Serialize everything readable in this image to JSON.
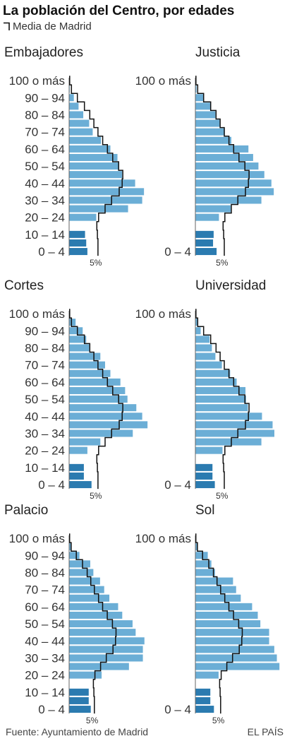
{
  "title": "La población del Centro, por edades",
  "legend_label": "Media de Madrid",
  "source": "Fuente: Ayuntamiento de Madrid",
  "brand": "EL PAÍS",
  "colors": {
    "bar_light": "#6baed6",
    "bar_dark": "#2b7bb0",
    "madrid_line": "#111111"
  },
  "chart_data": [
    {
      "type": "bar",
      "title": "Embajadores",
      "categories": [
        "0 – 4",
        "5 – 9",
        "10 – 14",
        "15 – 19",
        "20 – 24",
        "25 – 29",
        "30 – 34",
        "35 – 39",
        "40 – 44",
        "45 – 49",
        "50 – 54",
        "55 – 59",
        "60 – 64",
        "65 – 69",
        "70 – 74",
        "75 – 79",
        "80 – 84",
        "85 – 89",
        "90 – 94",
        "95 – 99",
        "100 o más"
      ],
      "tick_labels": [
        "100 o más",
        "90 – 94",
        "80 – 84",
        "70 – 74",
        "60 – 64",
        "50 – 54",
        "40 – 44",
        "30 – 34",
        "20 – 24",
        "10 – 14",
        "0 – 4"
      ],
      "series": [
        {
          "name": "",
          "values": [
            3.1,
            2.9,
            2.7,
            0,
            4.6,
            10.0,
            12.4,
            12.7,
            11.2,
            9.0,
            8.5,
            8.2,
            7.0,
            5.4,
            4.0,
            3.4,
            2.4,
            1.6,
            0.8,
            0.1,
            0
          ]
        },
        {
          "name": "Media de Madrid",
          "values": [
            4.9,
            4.9,
            4.8,
            4.7,
            5.0,
            6.1,
            7.2,
            8.5,
            9.0,
            9.1,
            8.4,
            7.4,
            6.5,
            5.7,
            4.9,
            4.2,
            3.5,
            2.6,
            1.4,
            0.4,
            0.1
          ]
        }
      ],
      "xlabel": "5%",
      "xlim": [
        0,
        14
      ]
    },
    {
      "type": "bar",
      "title": "Justicia",
      "categories": [
        "0 – 4",
        "5 – 9",
        "10 – 14",
        "15 – 19",
        "20 – 24",
        "25 – 29",
        "30 – 34",
        "35 – 39",
        "40 – 44",
        "45 – 49",
        "50 – 54",
        "55 – 59",
        "60 – 64",
        "65 – 69",
        "70 – 74",
        "75 – 79",
        "80 – 84",
        "85 – 89",
        "90 – 94",
        "95 – 99",
        "100 o más"
      ],
      "tick_labels": [
        "100 o más",
        "0 – 4"
      ],
      "series": [
        {
          "name": "",
          "values": [
            3.6,
            3.0,
            3.1,
            0,
            4.0,
            6.0,
            11.2,
            13.3,
            12.9,
            11.7,
            10.7,
            9.8,
            9.0,
            6.1,
            5.0,
            4.2,
            3.4,
            2.6,
            1.4,
            0.2,
            0
          ]
        },
        {
          "name": "Media de Madrid",
          "values": [
            4.9,
            4.9,
            4.8,
            4.7,
            5.0,
            6.1,
            7.2,
            8.5,
            9.0,
            9.1,
            8.4,
            7.4,
            6.5,
            5.7,
            4.9,
            4.2,
            3.5,
            2.6,
            1.4,
            0.4,
            0.1
          ]
        }
      ],
      "xlabel": "5%",
      "xlim": [
        0,
        14
      ]
    },
    {
      "type": "bar",
      "title": "Cortes",
      "categories": [
        "0 – 4",
        "5 – 9",
        "10 – 14",
        "15 – 19",
        "20 – 24",
        "25 – 29",
        "30 – 34",
        "35 – 39",
        "40 – 44",
        "45 – 49",
        "50 – 54",
        "55 – 59",
        "60 – 64",
        "65 – 69",
        "70 – 74",
        "75 – 79",
        "80 – 84",
        "85 – 89",
        "90 – 94",
        "95 – 99",
        "100 o más"
      ],
      "tick_labels": [
        "100 o más",
        "90 – 94",
        "80 – 84",
        "70 – 74",
        "60 – 64",
        "50 – 54",
        "40 – 44",
        "30 – 34",
        "20 – 24",
        "10 – 14",
        "0 – 4"
      ],
      "series": [
        {
          "name": "",
          "values": [
            3.8,
            2.5,
            2.5,
            0,
            3.1,
            5.3,
            10.8,
            13.3,
            12.4,
            11.4,
            9.9,
            9.5,
            8.7,
            7.0,
            6.1,
            5.3,
            3.4,
            2.9,
            2.3,
            1.1,
            0
          ]
        },
        {
          "name": "Media de Madrid",
          "values": [
            4.9,
            4.9,
            4.8,
            4.7,
            5.0,
            6.1,
            7.2,
            8.5,
            9.0,
            9.1,
            8.4,
            7.4,
            6.5,
            5.7,
            4.9,
            4.2,
            3.5,
            2.6,
            1.4,
            0.4,
            0.1
          ]
        }
      ],
      "xlabel": "5%",
      "xlim": [
        0,
        14
      ]
    },
    {
      "type": "bar",
      "title": "Universidad",
      "categories": [
        "0 – 4",
        "5 – 9",
        "10 – 14",
        "15 – 19",
        "20 – 24",
        "25 – 29",
        "30 – 34",
        "35 – 39",
        "40 – 44",
        "45 – 49",
        "50 – 54",
        "55 – 59",
        "60 – 64",
        "65 – 69",
        "70 – 74",
        "75 – 79",
        "80 – 84",
        "85 – 89",
        "90 – 94",
        "95 – 99",
        "100 o más"
      ],
      "tick_labels": [
        "100 o más",
        "0 – 4"
      ],
      "series": [
        {
          "name": "",
          "values": [
            3.3,
            2.9,
            2.9,
            0,
            4.6,
            11.2,
            13.4,
            13.1,
            11.3,
            8.9,
            8.6,
            8.5,
            7.0,
            5.9,
            4.5,
            3.4,
            2.8,
            2.4,
            0.9,
            0.3,
            0
          ]
        },
        {
          "name": "Media de Madrid",
          "values": [
            4.9,
            4.9,
            4.8,
            4.7,
            5.0,
            6.1,
            7.2,
            8.5,
            9.0,
            9.1,
            8.4,
            7.4,
            6.5,
            5.7,
            4.9,
            4.2,
            3.5,
            2.6,
            1.4,
            0.4,
            0.1
          ]
        }
      ],
      "xlabel": "5%",
      "xlim": [
        0,
        14
      ]
    },
    {
      "type": "bar",
      "title": "Palacio",
      "categories": [
        "0 – 4",
        "5 – 9",
        "10 – 14",
        "15 – 19",
        "20 – 24",
        "25 – 29",
        "30 – 34",
        "35 – 39",
        "40 – 44",
        "45 – 49",
        "50 – 54",
        "55 – 59",
        "60 – 64",
        "65 – 69",
        "70 – 74",
        "75 – 79",
        "80 – 84",
        "85 – 89",
        "90 – 94",
        "95 – 99",
        "100 o más"
      ],
      "tick_labels": [
        "100 o más",
        "90 – 94",
        "80 – 84",
        "70 – 74",
        "60 – 64",
        "50 – 54",
        "40 – 44",
        "30 – 34",
        "20 – 24",
        "10 – 14",
        "0 – 4"
      ],
      "series": [
        {
          "name": "",
          "values": [
            4.2,
            3.8,
            3.8,
            0,
            6.3,
            11.6,
            14.3,
            14.3,
            14.6,
            12.9,
            12.3,
            10.3,
            9.5,
            7.8,
            6.8,
            6.0,
            4.7,
            4.1,
            2.0,
            0.4,
            0
          ]
        },
        {
          "name": "Media de Madrid",
          "values": [
            4.9,
            4.9,
            4.8,
            4.7,
            5.0,
            6.1,
            7.2,
            8.5,
            9.0,
            9.1,
            8.4,
            7.4,
            6.5,
            5.7,
            4.9,
            4.2,
            3.5,
            2.6,
            1.4,
            0.4,
            0.1
          ]
        }
      ],
      "xlabel": "5%",
      "xlim": [
        0,
        16
      ]
    },
    {
      "type": "bar",
      "title": "Sol",
      "categories": [
        "0 – 4",
        "5 – 9",
        "10 – 14",
        "15 – 19",
        "20 – 24",
        "25 – 29",
        "30 – 34",
        "35 – 39",
        "40 – 44",
        "45 – 49",
        "50 – 54",
        "55 – 59",
        "60 – 64",
        "65 – 69",
        "70 – 74",
        "75 – 79",
        "80 – 84",
        "85 – 89",
        "90 – 94",
        "95 – 99",
        "100 o más"
      ],
      "tick_labels": [
        "100 o más",
        "0 – 4"
      ],
      "series": [
        {
          "name": "",
          "values": [
            3.6,
            2.9,
            2.9,
            0,
            4.5,
            16.3,
            15.8,
            15.3,
            14.3,
            14.3,
            12.6,
            12.1,
            11.0,
            8.8,
            7.9,
            7.3,
            3.8,
            3.1,
            2.4,
            0.4,
            0
          ]
        },
        {
          "name": "Media de Madrid",
          "values": [
            4.9,
            4.9,
            4.8,
            4.7,
            5.0,
            6.1,
            7.2,
            8.5,
            9.0,
            9.1,
            8.4,
            7.4,
            6.5,
            5.7,
            4.9,
            4.2,
            3.5,
            2.6,
            1.4,
            0.4,
            0.1
          ]
        }
      ],
      "xlabel": "5%",
      "xlim": [
        0,
        16
      ]
    }
  ]
}
